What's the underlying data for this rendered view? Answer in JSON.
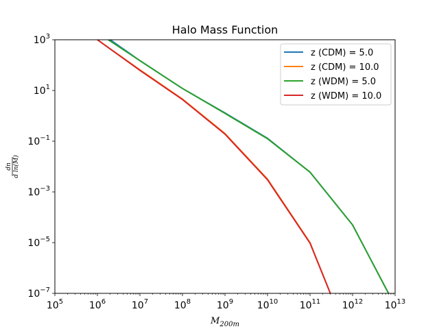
{
  "chart_data": {
    "type": "line",
    "title": "Halo Mass Function",
    "xlabel": "M",
    "xlabel_sub": "200m",
    "ylabel": "dn / d ln(M)",
    "xscale": "log",
    "yscale": "log",
    "xlim": [
      100000,
      10000000000000
    ],
    "ylim": [
      1e-07,
      1000
    ],
    "x_ticks": [
      {
        "base": "10",
        "exp": "5"
      },
      {
        "base": "10",
        "exp": "6"
      },
      {
        "base": "10",
        "exp": "7"
      },
      {
        "base": "10",
        "exp": "8"
      },
      {
        "base": "10",
        "exp": "9"
      },
      {
        "base": "10",
        "exp": "10"
      },
      {
        "base": "10",
        "exp": "11"
      },
      {
        "base": "10",
        "exp": "12"
      },
      {
        "base": "10",
        "exp": "13"
      }
    ],
    "y_ticks": [
      {
        "base": "10",
        "exp": "3"
      },
      {
        "base": "10",
        "exp": "1"
      },
      {
        "base": "10",
        "exp": "−1"
      },
      {
        "base": "10",
        "exp": "−3"
      },
      {
        "base": "10",
        "exp": "−5"
      },
      {
        "base": "10",
        "exp": "−7"
      }
    ],
    "legend_position": "top-right",
    "grid": false,
    "series": [
      {
        "name": "z (CDM) = 5.0",
        "color": "#1f77b4",
        "x": [
          2000000,
          10000000,
          100000000,
          1000000000,
          10000000000,
          100000000000,
          1000000000000,
          7000000000000
        ],
        "y": [
          1000,
          150,
          12,
          1.3,
          0.13,
          0.006,
          5e-05,
          1e-07
        ]
      },
      {
        "name": "z (CDM) = 10.0",
        "color": "#ff7f0e",
        "x": [
          1000000,
          10000000,
          100000000,
          1000000000,
          10000000000,
          100000000000,
          300000000000
        ],
        "y": [
          1000,
          65,
          4.6,
          0.2,
          0.0032,
          1e-05,
          1e-07
        ]
      },
      {
        "name": "z (WDM) = 5.0",
        "color": "#2ca02c",
        "x": [
          1800000,
          10000000,
          100000000,
          1000000000,
          10000000000,
          100000000000,
          1000000000000,
          7000000000000
        ],
        "y": [
          1000,
          150,
          12,
          1.25,
          0.125,
          0.006,
          5e-05,
          1e-07
        ]
      },
      {
        "name": "z (WDM) = 10.0",
        "color": "#d62728",
        "x": [
          1000000,
          10000000,
          100000000,
          1000000000,
          10000000000,
          100000000000,
          300000000000
        ],
        "y": [
          1000,
          62,
          4.4,
          0.19,
          0.003,
          9.5e-06,
          1e-07
        ]
      }
    ]
  }
}
